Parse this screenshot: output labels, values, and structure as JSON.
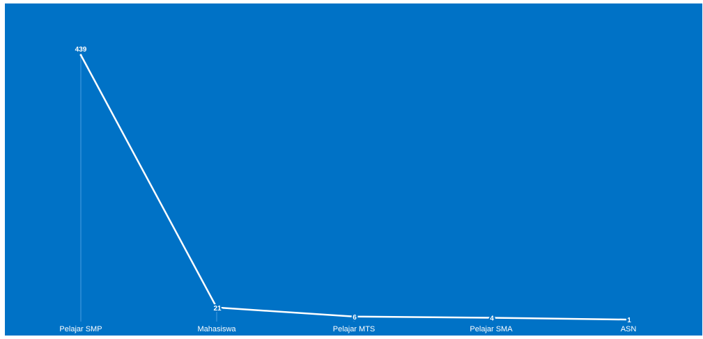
{
  "colors": {
    "background": "#0072c6",
    "line": "#ffffff",
    "drop_line": "#4a9ee0"
  },
  "chart_data": {
    "type": "line",
    "categories": [
      "Pelajar SMP",
      "Mahasiswa",
      "Pelajar MTS",
      "Pelajar SMA",
      "ASN"
    ],
    "series": [
      {
        "values": [
          439,
          21,
          6,
          4,
          1
        ],
        "data_labels": [
          "439",
          "21",
          "6",
          "4",
          "1"
        ]
      }
    ],
    "ylim": [
      0,
      450
    ],
    "grid": false,
    "legend": "none"
  }
}
